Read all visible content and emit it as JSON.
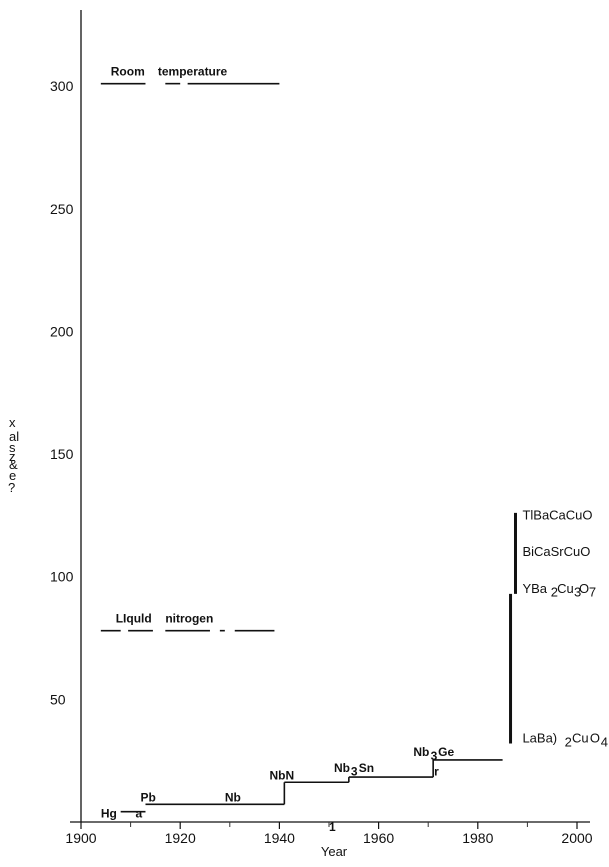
{
  "chart_data": {
    "type": "line",
    "xlabel": "Year",
    "ylabel_glyphs": [
      "x",
      "al",
      "s",
      "z",
      "&",
      "e",
      "?"
    ],
    "xlim": [
      1900,
      2000
    ],
    "ylim": [
      0,
      325
    ],
    "x_ticks": [
      1900,
      1920,
      1940,
      1960,
      1980,
      2000
    ],
    "x_tick_labels": [
      "1900",
      "1920",
      "1940",
      "1960",
      "1980",
      "2000"
    ],
    "y_ticks": [
      50,
      100,
      150,
      200,
      250,
      300
    ],
    "y_tick_labels": [
      "50",
      "100",
      "150",
      "200",
      "250",
      "300"
    ],
    "reference_lines": [
      {
        "label_words": [
          "Room",
          "temperature"
        ],
        "y": 301,
        "x": [
          1904,
          1940
        ]
      },
      {
        "label_words": [
          "LIquld",
          "nitrogen"
        ],
        "y": 78,
        "x": [
          1904,
          1939
        ]
      }
    ],
    "record_steps": [
      {
        "x": [
          1908,
          1913
        ],
        "y": 4.2
      },
      {
        "x": [
          1913,
          1941
        ],
        "y": 7.2
      },
      {
        "x": [
          1941,
          1954
        ],
        "y": 16.2
      },
      {
        "x": [
          1954,
          1971
        ],
        "y": 18.3
      },
      {
        "x": [
          1971,
          1985
        ],
        "y": 25.3
      }
    ],
    "step_risers": [
      {
        "x": 1941,
        "y": [
          7.2,
          16.2
        ]
      },
      {
        "x": 1954,
        "y": [
          16.2,
          18.3
        ]
      },
      {
        "x": 1971,
        "y": [
          18.3,
          25.3
        ]
      }
    ],
    "cuprate_bars": [
      {
        "x": 1986.6,
        "y": [
          32,
          93
        ]
      },
      {
        "x": 1987.6,
        "y": [
          93,
          126
        ]
      }
    ],
    "materials": [
      {
        "label": "Hg",
        "x": 1904,
        "y": 3.5,
        "style": "bold"
      },
      {
        "label": "a",
        "x": 1911,
        "y": 3.5,
        "style": "bold"
      },
      {
        "label": "Pb",
        "x": 1912,
        "y": 10,
        "style": "bold"
      },
      {
        "label": "Nb",
        "x": 1929,
        "y": 10,
        "style": "bold"
      },
      {
        "label": "NbN",
        "x": 1938,
        "y": 19,
        "style": "bold"
      },
      {
        "label": "Nb",
        "x": 1951,
        "y": 22,
        "style": "bold"
      },
      {
        "label": "3",
        "x": 1954.4,
        "y": 20.5,
        "style": "sub"
      },
      {
        "label": "Sn",
        "x": 1956,
        "y": 22,
        "style": "bold"
      },
      {
        "label": "Nb",
        "x": 1967,
        "y": 28.5,
        "style": "bold"
      },
      {
        "label": "3",
        "x": 1970.5,
        "y": 27,
        "style": "sub"
      },
      {
        "label": "Ge",
        "x": 1972,
        "y": 28.5,
        "style": "bold"
      },
      {
        "label": "r",
        "x": 1971.2,
        "y": 20.5,
        "style": "bold"
      },
      {
        "label": "1",
        "x": 1950,
        "y": -2,
        "style": "bold"
      },
      {
        "label": "TlBaCaCuO",
        "x": 1989,
        "y": 125,
        "style": "light"
      },
      {
        "label": "BiCaSrCuO",
        "x": 1989,
        "y": 110,
        "style": "light"
      },
      {
        "label": "YBa",
        "x": 1989,
        "y": 95,
        "style": "light"
      },
      {
        "label": "2",
        "x": 1994.7,
        "y": 93.5,
        "style": "sublight"
      },
      {
        "label": "Cu",
        "x": 1996,
        "y": 95,
        "style": "light"
      },
      {
        "label": "3",
        "x": 1999.4,
        "y": 93.5,
        "style": "sublight"
      },
      {
        "label": "O",
        "x": 2000.4,
        "y": 95,
        "style": "light"
      },
      {
        "label": "7",
        "x": 2002.4,
        "y": 93.5,
        "style": "sublight"
      },
      {
        "label": "LaBa)",
        "x": 1989,
        "y": 34,
        "style": "light"
      },
      {
        "label": "2",
        "x": 1997.5,
        "y": 32.5,
        "style": "sublight"
      },
      {
        "label": "Cu",
        "x": 1999,
        "y": 34,
        "style": "light"
      },
      {
        "label": "O",
        "x": 2002.6,
        "y": 34,
        "style": "light"
      },
      {
        "label": "4",
        "x": 2004.8,
        "y": 32.5,
        "style": "sublight"
      }
    ]
  }
}
